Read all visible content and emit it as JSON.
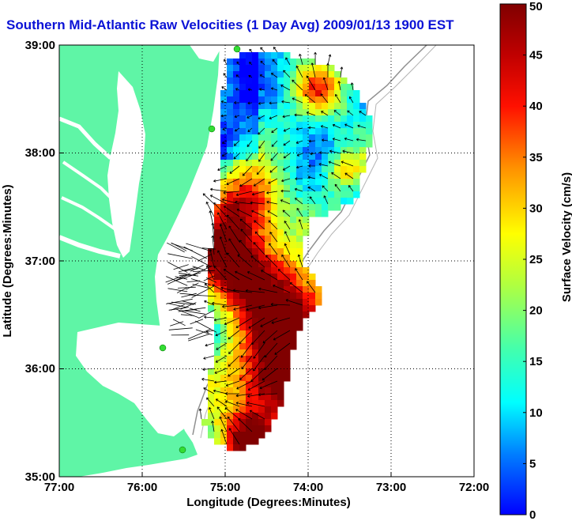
{
  "title": "Southern Mid-Atlantic Raw Velocities (1 Day Avg) 2009/01/13 1900 EST",
  "xlabel": "Longitude (Degrees:Minutes)",
  "ylabel": "Latitude (Degrees:Minutes)",
  "x_ticks": [
    "77:00",
    "76:00",
    "75:00",
    "74:00",
    "73:00",
    "72:00"
  ],
  "y_ticks": [
    "39:00",
    "38:00",
    "37:00",
    "36:00",
    "35:00"
  ],
  "colorbar": {
    "label": "Surface Velocity (cm/s)",
    "ticks": [
      "0",
      "5",
      "10",
      "15",
      "20",
      "25",
      "30",
      "35",
      "40",
      "45",
      "50"
    ],
    "min": 0,
    "max": 50
  },
  "colors": {
    "land": "#5ff5a6",
    "water": "#ffffff",
    "title": "#0b12d6",
    "station": "#33dd33"
  },
  "chart_data": {
    "type": "heatmap",
    "title": "Southern Mid-Atlantic Raw Velocities (1 Day Avg) 2009/01/13 1900 EST",
    "xlabel": "Longitude (Degrees:Minutes)",
    "ylabel": "Latitude (Degrees:Minutes)",
    "xlim": [
      -77,
      -72
    ],
    "ylim": [
      35,
      39
    ],
    "grid": true,
    "colorbar_range": [
      0,
      50
    ],
    "colorbar_label": "Surface Velocity (cm/s)"
  }
}
